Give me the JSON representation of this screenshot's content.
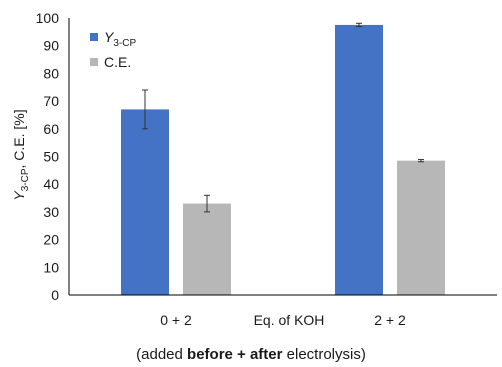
{
  "chart_data": {
    "type": "bar",
    "categories": [
      "0 + 2",
      "2 + 2"
    ],
    "series": [
      {
        "name_main": "Y",
        "name_sub": "3-CP",
        "values": [
          67,
          97.5
        ],
        "errors": [
          7,
          0.6
        ],
        "color": "#4472c4"
      },
      {
        "name_main": "C.E.",
        "name_sub": "",
        "values": [
          33,
          48.5
        ],
        "errors": [
          3,
          0.4
        ],
        "color": "#b7b7b7"
      }
    ],
    "xlabel": "Eq. of KOH",
    "subtitle_parts": [
      "(added ",
      "before + after",
      " electrolysis)"
    ],
    "ylabel_parts": {
      "var": "Y",
      "sub": "3-CP",
      "rest": ", C.E. [%]"
    },
    "ylim": [
      0,
      100
    ],
    "yticks": [
      0,
      10,
      20,
      30,
      40,
      50,
      60,
      70,
      80,
      90,
      100
    ],
    "legend_position": "top-left",
    "grid": false
  }
}
